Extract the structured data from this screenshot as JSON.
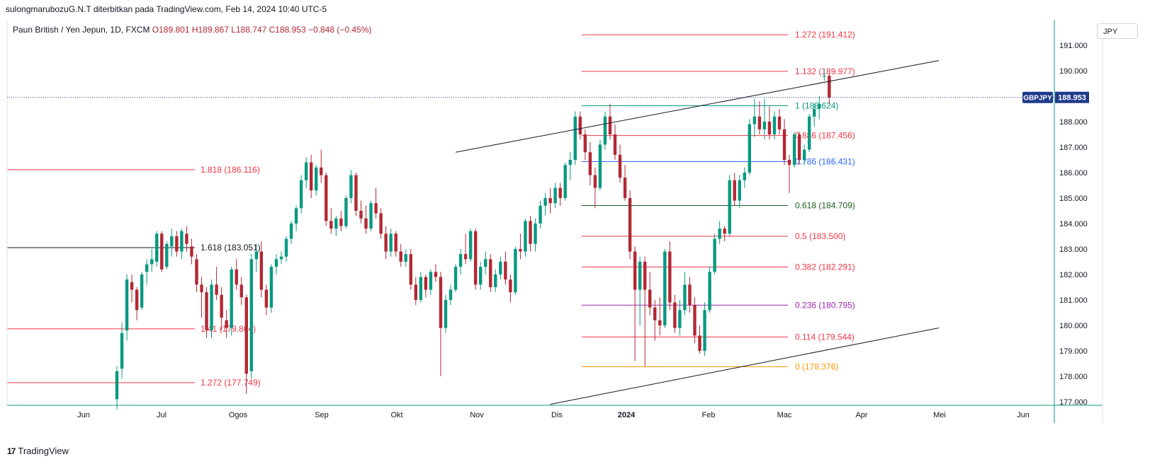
{
  "header": {
    "publish_line": "sulongmarubozuG.N.T diterbitkan pada TradingView.com, Feb 14, 2024 10:40 UTC-5"
  },
  "legend": {
    "symbol": "Paun British / Yen Jepun, 1D, FXCM",
    "ohlc": "O189.801  H189.867  L188.747  C188.953  −0.848 (−0.45%)"
  },
  "currency_button": "JPY",
  "brand": {
    "logo": "17",
    "name": "TradingView"
  },
  "colors": {
    "up": "#089981",
    "down": "#b22833",
    "price_line": "#1e3a8a"
  },
  "chart_data": {
    "type": "candlestick",
    "symbol": "GBPJPY",
    "last_price": "188.953",
    "x_ticks": [
      "Jun",
      "Jul",
      "Ogos",
      "Sep",
      "Okt",
      "Nov",
      "Dis",
      "2024",
      "Feb",
      "Mac",
      "Apr",
      "Mei",
      "Jun"
    ],
    "y_ticks": [
      "191.000",
      "190.000",
      "189.000",
      "188.000",
      "187.000",
      "186.000",
      "185.000",
      "184.000",
      "183.000",
      "182.000",
      "181.000",
      "180.000",
      "179.000",
      "178.000",
      "177.000"
    ],
    "ylim": [
      177.0,
      192.5
    ],
    "fib_levels_right": [
      {
        "label": "1.272 (191.412)",
        "value": 191.412,
        "color": "#f23645"
      },
      {
        "label": "1.132 (189.977)",
        "value": 189.977,
        "color": "#f23645"
      },
      {
        "label": "1 (188.624)",
        "value": 188.624,
        "color": "#089981"
      },
      {
        "label": "0.886 (187.456)",
        "value": 187.456,
        "color": "#f23645"
      },
      {
        "label": "0.786 (186.431)",
        "value": 186.431,
        "color": "#2962ff"
      },
      {
        "label": "0.618 (184.709)",
        "value": 184.709,
        "color": "#1b5e20"
      },
      {
        "label": "0.5 (183.500)",
        "value": 183.5,
        "color": "#f23645"
      },
      {
        "label": "0.382 (182.291)",
        "value": 182.291,
        "color": "#f23645"
      },
      {
        "label": "0.236 (180.795)",
        "value": 180.795,
        "color": "#9c27b0"
      },
      {
        "label": "0.114 (179.544)",
        "value": 179.544,
        "color": "#f23645"
      },
      {
        "label": "0 (178.376)",
        "value": 178.376,
        "color": "#ff9800"
      }
    ],
    "fib_levels_left": [
      {
        "label": "1.818 (186.116)",
        "value": 186.116,
        "color": "#f23645"
      },
      {
        "label": "1.618 (183.051)",
        "value": 183.051,
        "color": "#131722"
      },
      {
        "label": "1.41 (179.864)",
        "value": 179.864,
        "color": "#f23645"
      },
      {
        "label": "1.272 (177.749)",
        "value": 177.749,
        "color": "#f23645"
      }
    ],
    "channel_lines": [
      {
        "from": {
          "t": 68,
          "v": 186.8
        },
        "to": {
          "t": 165,
          "v": 190.4
        }
      },
      {
        "from": {
          "t": 87,
          "v": 176.9
        },
        "to": {
          "t": 165,
          "v": 179.9
        }
      }
    ],
    "ohlc": [
      [
        177.1,
        178.4,
        176.7,
        178.2
      ],
      [
        178.3,
        180.1,
        177.9,
        179.7
      ],
      [
        179.8,
        182.0,
        179.4,
        181.8
      ],
      [
        181.7,
        182.0,
        180.9,
        181.4
      ],
      [
        181.4,
        181.5,
        180.2,
        180.6
      ],
      [
        180.7,
        182.1,
        180.6,
        182.0
      ],
      [
        182.1,
        182.6,
        181.6,
        182.4
      ],
      [
        182.4,
        183.0,
        182.1,
        182.6
      ],
      [
        182.5,
        183.7,
        182.3,
        183.6
      ],
      [
        183.6,
        183.7,
        182.1,
        182.2
      ],
      [
        182.3,
        183.3,
        182.2,
        183.2
      ],
      [
        183.1,
        183.8,
        182.7,
        183.5
      ],
      [
        183.5,
        183.7,
        182.7,
        182.9
      ],
      [
        182.9,
        183.8,
        182.6,
        183.7
      ],
      [
        183.6,
        183.9,
        182.9,
        183.2
      ],
      [
        183.1,
        183.4,
        182.4,
        182.7
      ],
      [
        182.6,
        182.8,
        181.3,
        181.6
      ],
      [
        181.6,
        181.9,
        180.3,
        181.3
      ],
      [
        181.3,
        181.5,
        179.5,
        179.8
      ],
      [
        179.8,
        181.8,
        179.5,
        181.6
      ],
      [
        181.6,
        182.3,
        181.0,
        181.2
      ],
      [
        181.2,
        181.5,
        179.8,
        180.3
      ],
      [
        180.2,
        180.6,
        179.5,
        179.9
      ],
      [
        179.9,
        182.3,
        179.6,
        182.2
      ],
      [
        182.2,
        182.6,
        181.4,
        181.6
      ],
      [
        181.6,
        181.9,
        180.8,
        181.1
      ],
      [
        181.1,
        181.2,
        177.3,
        178.1
      ],
      [
        178.2,
        182.8,
        177.9,
        182.6
      ],
      [
        182.6,
        183.2,
        182.1,
        182.9
      ],
      [
        182.9,
        183.3,
        181.1,
        181.4
      ],
      [
        181.4,
        181.6,
        180.4,
        180.7
      ],
      [
        180.7,
        182.4,
        180.5,
        182.3
      ],
      [
        182.3,
        182.8,
        182.0,
        182.6
      ],
      [
        182.6,
        182.9,
        182.4,
        182.7
      ],
      [
        182.7,
        183.5,
        182.5,
        183.4
      ],
      [
        183.4,
        184.1,
        183.2,
        184.0
      ],
      [
        184.0,
        184.7,
        183.7,
        184.6
      ],
      [
        184.6,
        185.9,
        184.4,
        185.7
      ],
      [
        185.7,
        186.6,
        185.4,
        186.4
      ],
      [
        186.4,
        186.7,
        185.0,
        185.3
      ],
      [
        185.3,
        186.3,
        185.1,
        186.2
      ],
      [
        186.2,
        186.9,
        185.6,
        185.9
      ],
      [
        185.9,
        186.0,
        183.9,
        184.1
      ],
      [
        184.1,
        184.6,
        183.6,
        183.8
      ],
      [
        183.8,
        184.3,
        183.5,
        184.2
      ],
      [
        184.2,
        184.5,
        183.7,
        183.9
      ],
      [
        183.9,
        185.1,
        183.8,
        185.0
      ],
      [
        185.0,
        186.1,
        184.8,
        185.9
      ],
      [
        185.9,
        186.0,
        184.3,
        184.5
      ],
      [
        184.5,
        184.9,
        184.0,
        184.2
      ],
      [
        184.2,
        184.7,
        183.6,
        183.8
      ],
      [
        183.8,
        184.9,
        183.7,
        184.8
      ],
      [
        184.8,
        185.4,
        184.2,
        184.4
      ],
      [
        184.4,
        184.6,
        183.4,
        183.6
      ],
      [
        183.6,
        183.9,
        182.6,
        182.9
      ],
      [
        182.9,
        183.8,
        182.7,
        183.6
      ],
      [
        183.6,
        183.7,
        182.7,
        182.9
      ],
      [
        182.9,
        183.2,
        182.3,
        182.5
      ],
      [
        182.5,
        183.0,
        182.3,
        182.8
      ],
      [
        182.8,
        183.0,
        181.4,
        181.6
      ],
      [
        181.6,
        181.9,
        180.8,
        181.0
      ],
      [
        181.0,
        182.1,
        180.9,
        181.9
      ],
      [
        181.9,
        182.0,
        181.1,
        181.4
      ],
      [
        181.4,
        182.2,
        181.2,
        182.1
      ],
      [
        182.1,
        182.4,
        181.7,
        181.9
      ],
      [
        181.9,
        182.1,
        178.0,
        179.9
      ],
      [
        179.9,
        181.2,
        179.7,
        181.0
      ],
      [
        181.0,
        181.6,
        180.8,
        181.4
      ],
      [
        181.4,
        182.4,
        181.3,
        182.3
      ],
      [
        182.3,
        183.0,
        182.0,
        182.8
      ],
      [
        182.8,
        183.6,
        182.4,
        182.6
      ],
      [
        182.6,
        183.8,
        182.5,
        183.7
      ],
      [
        183.7,
        183.8,
        181.4,
        181.6
      ],
      [
        181.6,
        182.5,
        181.4,
        182.3
      ],
      [
        182.3,
        182.9,
        182.0,
        182.6
      ],
      [
        182.6,
        182.8,
        181.3,
        181.5
      ],
      [
        181.5,
        182.2,
        181.3,
        182.0
      ],
      [
        182.0,
        182.7,
        181.8,
        182.5
      ],
      [
        182.5,
        182.9,
        181.6,
        181.8
      ],
      [
        181.8,
        182.0,
        180.9,
        181.3
      ],
      [
        181.3,
        183.1,
        181.2,
        183.0
      ],
      [
        183.0,
        183.6,
        182.6,
        182.9
      ],
      [
        182.9,
        184.2,
        182.7,
        184.1
      ],
      [
        184.1,
        184.3,
        182.9,
        183.2
      ],
      [
        183.2,
        184.2,
        182.9,
        184.0
      ],
      [
        184.0,
        184.9,
        183.8,
        184.7
      ],
      [
        184.7,
        185.2,
        184.3,
        185.0
      ],
      [
        185.0,
        185.4,
        184.4,
        184.8
      ],
      [
        184.8,
        185.6,
        184.6,
        185.4
      ],
      [
        185.4,
        185.6,
        184.7,
        185.0
      ],
      [
        185.0,
        186.4,
        184.9,
        186.3
      ],
      [
        186.3,
        186.8,
        185.7,
        186.5
      ],
      [
        186.5,
        188.4,
        186.3,
        188.2
      ],
      [
        188.2,
        188.4,
        187.3,
        187.5
      ],
      [
        187.5,
        187.7,
        186.5,
        186.8
      ],
      [
        186.8,
        187.2,
        185.5,
        185.9
      ],
      [
        185.9,
        186.2,
        184.6,
        185.4
      ],
      [
        185.4,
        187.3,
        185.3,
        187.1
      ],
      [
        187.1,
        188.4,
        186.9,
        188.2
      ],
      [
        188.2,
        188.7,
        187.3,
        187.5
      ],
      [
        187.5,
        187.9,
        186.5,
        186.7
      ],
      [
        186.7,
        187.1,
        185.6,
        185.8
      ],
      [
        185.8,
        186.3,
        184.9,
        185.0
      ],
      [
        185.0,
        185.3,
        182.6,
        182.9
      ],
      [
        182.9,
        183.1,
        178.6,
        181.4
      ],
      [
        181.4,
        182.7,
        180.0,
        182.5
      ],
      [
        182.5,
        182.7,
        178.4,
        181.4
      ],
      [
        181.4,
        182.1,
        180.4,
        180.7
      ],
      [
        180.7,
        181.0,
        179.4,
        180.2
      ],
      [
        180.2,
        181.1,
        179.6,
        180.0
      ],
      [
        180.0,
        183.0,
        179.9,
        182.9
      ],
      [
        182.9,
        183.3,
        180.6,
        180.9
      ],
      [
        180.9,
        181.2,
        179.7,
        179.9
      ],
      [
        179.9,
        181.0,
        179.6,
        180.6
      ],
      [
        180.6,
        182.1,
        180.4,
        181.6
      ],
      [
        181.6,
        181.9,
        180.5,
        180.8
      ],
      [
        180.8,
        181.1,
        179.3,
        179.6
      ],
      [
        179.6,
        180.0,
        178.9,
        179.0
      ],
      [
        179.0,
        180.9,
        178.8,
        180.6
      ],
      [
        180.6,
        182.3,
        180.5,
        182.1
      ],
      [
        182.1,
        183.6,
        182.0,
        183.4
      ],
      [
        183.4,
        184.1,
        183.2,
        183.8
      ],
      [
        183.8,
        183.9,
        183.3,
        183.6
      ],
      [
        183.6,
        185.9,
        183.5,
        185.7
      ],
      [
        185.7,
        186.0,
        184.7,
        184.9
      ],
      [
        184.9,
        185.9,
        184.6,
        185.7
      ],
      [
        185.7,
        186.2,
        185.4,
        186.0
      ],
      [
        186.0,
        188.1,
        185.9,
        187.9
      ],
      [
        187.9,
        188.9,
        187.4,
        188.2
      ],
      [
        188.2,
        188.8,
        187.5,
        187.7
      ],
      [
        187.7,
        188.9,
        187.3,
        188.0
      ],
      [
        188.0,
        188.6,
        187.3,
        187.5
      ],
      [
        187.5,
        188.4,
        187.3,
        188.2
      ],
      [
        188.2,
        188.5,
        187.5,
        187.7
      ],
      [
        187.7,
        188.1,
        186.3,
        186.5
      ],
      [
        186.5,
        186.7,
        185.2,
        186.3
      ],
      [
        186.3,
        187.6,
        186.2,
        187.5
      ],
      [
        187.5,
        187.6,
        186.3,
        186.5
      ],
      [
        186.5,
        187.1,
        186.3,
        186.9
      ],
      [
        186.9,
        188.3,
        186.8,
        188.2
      ],
      [
        188.2,
        188.7,
        187.8,
        188.5
      ],
      [
        188.5,
        189.0,
        188.1,
        188.7
      ],
      [
        189.8,
        190.1,
        189.6,
        189.8
      ],
      [
        189.8,
        189.9,
        188.7,
        188.95
      ]
    ]
  }
}
